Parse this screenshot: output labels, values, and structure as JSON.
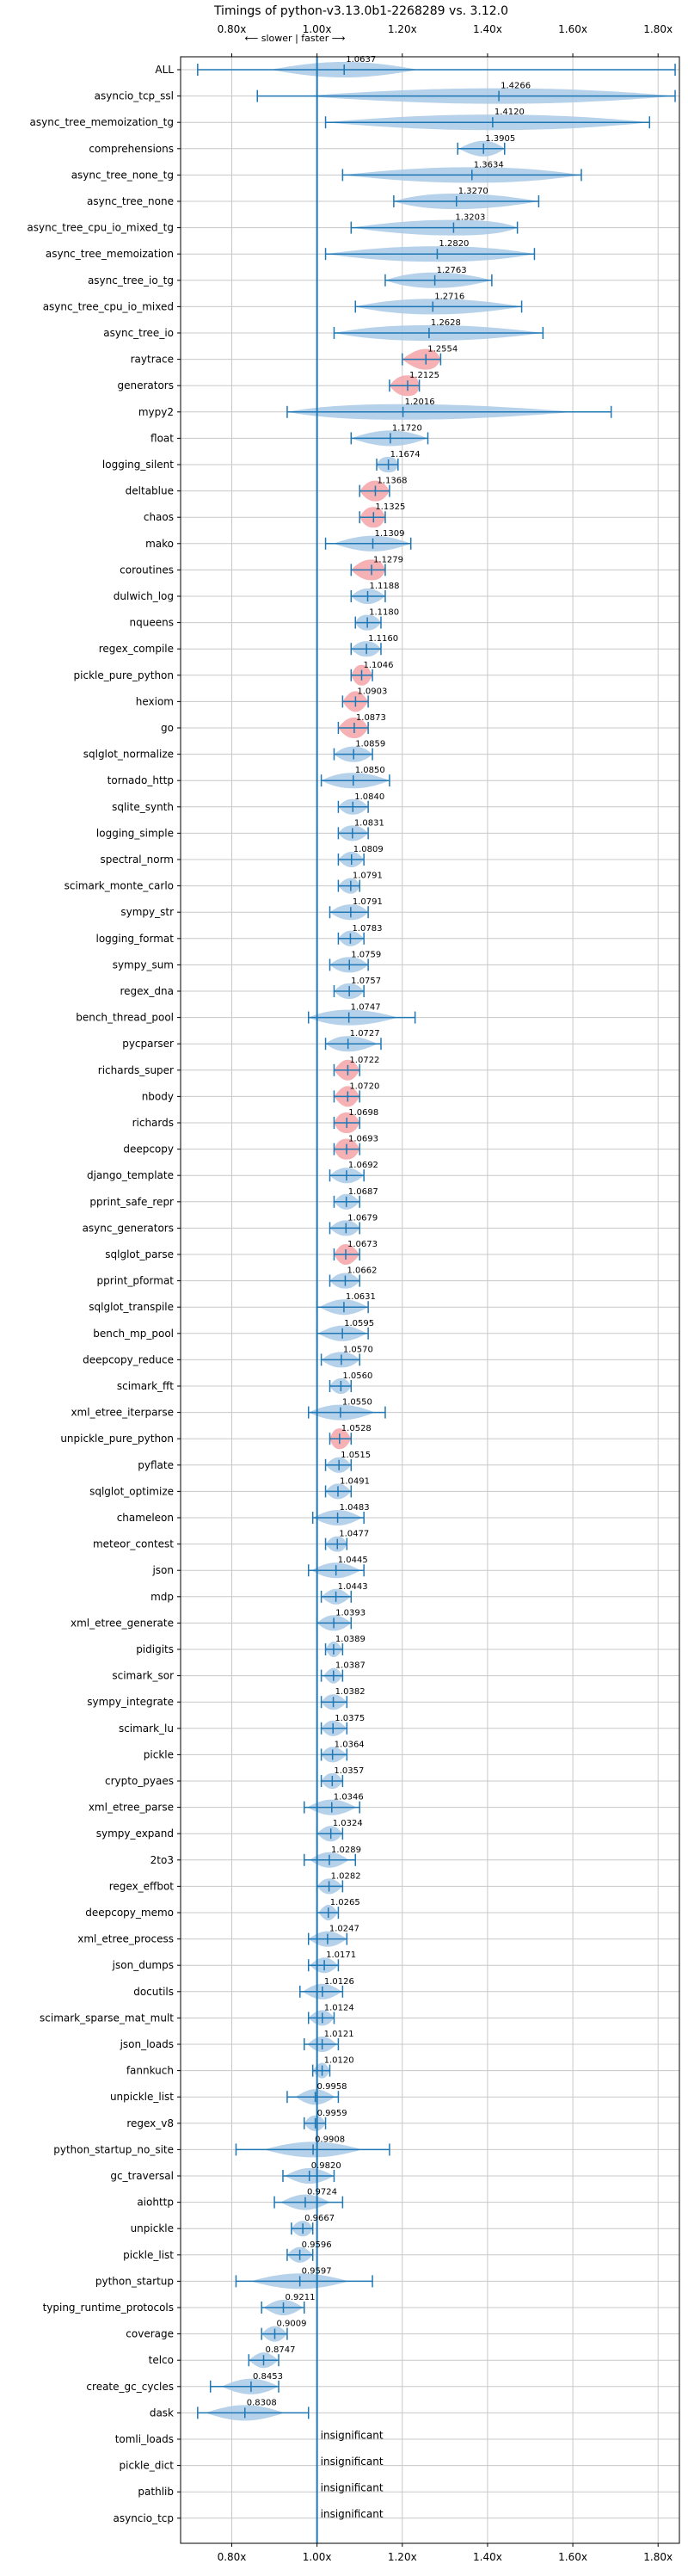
{
  "chart_data": {
    "type": "violin",
    "title": "Timings of python-v3.13.0b1-2268289 vs. 3.12.0",
    "direction_note": "⟵ slower | faster ⟶",
    "xlim": [
      0.68,
      1.85
    ],
    "x_ticks": [
      0.8,
      1.0,
      1.2,
      1.4,
      1.6,
      1.8
    ],
    "x_tick_labels": [
      "0.80x",
      "1.00x",
      "1.20x",
      "1.40x",
      "1.60x",
      "1.80x"
    ],
    "reference_line": 1.0,
    "grid": true,
    "colors": {
      "violin": "#a9c9e6",
      "bar": "#1f77b4",
      "highlight": "#f4a3a8",
      "line": "#1f77b4"
    },
    "significant": [
      {
        "name": "ALL",
        "mean": 1.0637,
        "min": 0.72,
        "max": 1.84,
        "spread": 0.15
      },
      {
        "name": "asyncio_tcp_ssl",
        "mean": 1.4266,
        "min": 0.86,
        "max": 1.84,
        "spread": 0.4
      },
      {
        "name": "async_tree_memoization_tg",
        "mean": 1.412,
        "min": 1.02,
        "max": 1.78,
        "spread": 0.38
      },
      {
        "name": "comprehensions",
        "mean": 1.3905,
        "min": 1.33,
        "max": 1.44,
        "spread": 0.05
      },
      {
        "name": "async_tree_none_tg",
        "mean": 1.3634,
        "min": 1.06,
        "max": 1.62,
        "spread": 0.28
      },
      {
        "name": "async_tree_none",
        "mean": 1.327,
        "min": 1.18,
        "max": 1.52,
        "spread": 0.18
      },
      {
        "name": "async_tree_cpu_io_mixed_tg",
        "mean": 1.3203,
        "min": 1.08,
        "max": 1.47,
        "spread": 0.22
      },
      {
        "name": "async_tree_memoization",
        "mean": 1.282,
        "min": 1.02,
        "max": 1.51,
        "spread": 0.26
      },
      {
        "name": "async_tree_io_tg",
        "mean": 1.2763,
        "min": 1.16,
        "max": 1.41,
        "spread": 0.13
      },
      {
        "name": "async_tree_cpu_io_mixed",
        "mean": 1.2716,
        "min": 1.09,
        "max": 1.48,
        "spread": 0.2
      },
      {
        "name": "async_tree_io",
        "mean": 1.2628,
        "min": 1.04,
        "max": 1.53,
        "spread": 0.26
      },
      {
        "name": "raytrace",
        "mean": 1.2554,
        "min": 1.2,
        "max": 1.29,
        "spread": 0.05,
        "highlight": true
      },
      {
        "name": "generators",
        "mean": 1.2125,
        "min": 1.17,
        "max": 1.24,
        "spread": 0.05,
        "highlight": true
      },
      {
        "name": "mypy2",
        "mean": 1.2016,
        "min": 0.93,
        "max": 1.69,
        "spread": 0.35
      },
      {
        "name": "float",
        "mean": 1.172,
        "min": 1.08,
        "max": 1.26,
        "spread": 0.08
      },
      {
        "name": "logging_silent",
        "mean": 1.1674,
        "min": 1.14,
        "max": 1.19,
        "spread": 0.04
      },
      {
        "name": "deltablue",
        "mean": 1.1368,
        "min": 1.1,
        "max": 1.17,
        "spread": 0.04,
        "highlight": true
      },
      {
        "name": "chaos",
        "mean": 1.1325,
        "min": 1.1,
        "max": 1.16,
        "spread": 0.04,
        "highlight": true
      },
      {
        "name": "mako",
        "mean": 1.1309,
        "min": 1.02,
        "max": 1.22,
        "spread": 0.08
      },
      {
        "name": "coroutines",
        "mean": 1.1279,
        "min": 1.08,
        "max": 1.16,
        "spread": 0.05,
        "highlight": true
      },
      {
        "name": "dulwich_log",
        "mean": 1.1188,
        "min": 1.08,
        "max": 1.16,
        "spread": 0.04
      },
      {
        "name": "nqueens",
        "mean": 1.118,
        "min": 1.09,
        "max": 1.15,
        "spread": 0.04
      },
      {
        "name": "regex_compile",
        "mean": 1.116,
        "min": 1.08,
        "max": 1.15,
        "spread": 0.04
      },
      {
        "name": "pickle_pure_python",
        "mean": 1.1046,
        "min": 1.08,
        "max": 1.13,
        "spread": 0.03,
        "highlight": true
      },
      {
        "name": "hexiom",
        "mean": 1.0903,
        "min": 1.06,
        "max": 1.12,
        "spread": 0.03,
        "highlight": true
      },
      {
        "name": "go",
        "mean": 1.0873,
        "min": 1.05,
        "max": 1.12,
        "spread": 0.04,
        "highlight": true
      },
      {
        "name": "sqlglot_normalize",
        "mean": 1.0859,
        "min": 1.04,
        "max": 1.13,
        "spread": 0.05
      },
      {
        "name": "tornado_http",
        "mean": 1.085,
        "min": 1.01,
        "max": 1.17,
        "spread": 0.08
      },
      {
        "name": "sqlite_synth",
        "mean": 1.084,
        "min": 1.05,
        "max": 1.12,
        "spread": 0.04
      },
      {
        "name": "logging_simple",
        "mean": 1.0831,
        "min": 1.05,
        "max": 1.12,
        "spread": 0.04
      },
      {
        "name": "spectral_norm",
        "mean": 1.0809,
        "min": 1.05,
        "max": 1.11,
        "spread": 0.03
      },
      {
        "name": "scimark_monte_carlo",
        "mean": 1.0791,
        "min": 1.05,
        "max": 1.1,
        "spread": 0.03
      },
      {
        "name": "sympy_str",
        "mean": 1.0791,
        "min": 1.03,
        "max": 1.12,
        "spread": 0.05
      },
      {
        "name": "logging_format",
        "mean": 1.0783,
        "min": 1.05,
        "max": 1.11,
        "spread": 0.03
      },
      {
        "name": "sympy_sum",
        "mean": 1.0759,
        "min": 1.03,
        "max": 1.12,
        "spread": 0.05
      },
      {
        "name": "regex_dna",
        "mean": 1.0757,
        "min": 1.04,
        "max": 1.11,
        "spread": 0.04
      },
      {
        "name": "bench_thread_pool",
        "mean": 1.0747,
        "min": 0.98,
        "max": 1.23,
        "spread": 0.1
      },
      {
        "name": "pycparser",
        "mean": 1.0727,
        "min": 1.02,
        "max": 1.15,
        "spread": 0.06
      },
      {
        "name": "richards_super",
        "mean": 1.0722,
        "min": 1.04,
        "max": 1.1,
        "spread": 0.03,
        "highlight": true
      },
      {
        "name": "nbody",
        "mean": 1.072,
        "min": 1.04,
        "max": 1.1,
        "spread": 0.03,
        "highlight": true
      },
      {
        "name": "richards",
        "mean": 1.0698,
        "min": 1.04,
        "max": 1.1,
        "spread": 0.04,
        "highlight": true
      },
      {
        "name": "deepcopy",
        "mean": 1.0693,
        "min": 1.04,
        "max": 1.1,
        "spread": 0.04,
        "highlight": true
      },
      {
        "name": "django_template",
        "mean": 1.0692,
        "min": 1.03,
        "max": 1.11,
        "spread": 0.04
      },
      {
        "name": "pprint_safe_repr",
        "mean": 1.0687,
        "min": 1.04,
        "max": 1.1,
        "spread": 0.03
      },
      {
        "name": "async_generators",
        "mean": 1.0679,
        "min": 1.03,
        "max": 1.1,
        "spread": 0.04
      },
      {
        "name": "sqlglot_parse",
        "mean": 1.0673,
        "min": 1.04,
        "max": 1.1,
        "spread": 0.03,
        "highlight": true
      },
      {
        "name": "pprint_pformat",
        "mean": 1.0662,
        "min": 1.03,
        "max": 1.1,
        "spread": 0.04
      },
      {
        "name": "sqlglot_transpile",
        "mean": 1.0631,
        "min": 1.0,
        "max": 1.12,
        "spread": 0.05
      },
      {
        "name": "bench_mp_pool",
        "mean": 1.0595,
        "min": 1.0,
        "max": 1.12,
        "spread": 0.05
      },
      {
        "name": "deepcopy_reduce",
        "mean": 1.057,
        "min": 1.01,
        "max": 1.1,
        "spread": 0.05
      },
      {
        "name": "scimark_fft",
        "mean": 1.056,
        "min": 1.03,
        "max": 1.08,
        "spread": 0.03
      },
      {
        "name": "xml_etree_iterparse",
        "mean": 1.055,
        "min": 0.98,
        "max": 1.16,
        "spread": 0.07
      },
      {
        "name": "unpickle_pure_python",
        "mean": 1.0528,
        "min": 1.03,
        "max": 1.08,
        "spread": 0.03,
        "highlight": true
      },
      {
        "name": "pyflate",
        "mean": 1.0515,
        "min": 1.02,
        "max": 1.08,
        "spread": 0.03
      },
      {
        "name": "sqlglot_optimize",
        "mean": 1.0491,
        "min": 1.02,
        "max": 1.08,
        "spread": 0.03
      },
      {
        "name": "chameleon",
        "mean": 1.0483,
        "min": 0.99,
        "max": 1.11,
        "spread": 0.05
      },
      {
        "name": "meteor_contest",
        "mean": 1.0477,
        "min": 1.02,
        "max": 1.07,
        "spread": 0.03
      },
      {
        "name": "json",
        "mean": 1.0445,
        "min": 0.98,
        "max": 1.11,
        "spread": 0.05
      },
      {
        "name": "mdp",
        "mean": 1.0443,
        "min": 1.01,
        "max": 1.08,
        "spread": 0.03
      },
      {
        "name": "xml_etree_generate",
        "mean": 1.0393,
        "min": 1.0,
        "max": 1.08,
        "spread": 0.04
      },
      {
        "name": "pidigits",
        "mean": 1.0389,
        "min": 1.02,
        "max": 1.06,
        "spread": 0.02
      },
      {
        "name": "scimark_sor",
        "mean": 1.0387,
        "min": 1.01,
        "max": 1.06,
        "spread": 0.02
      },
      {
        "name": "sympy_integrate",
        "mean": 1.0382,
        "min": 1.01,
        "max": 1.07,
        "spread": 0.03
      },
      {
        "name": "scimark_lu",
        "mean": 1.0375,
        "min": 1.01,
        "max": 1.07,
        "spread": 0.03
      },
      {
        "name": "pickle",
        "mean": 1.0364,
        "min": 1.01,
        "max": 1.07,
        "spread": 0.03
      },
      {
        "name": "crypto_pyaes",
        "mean": 1.0357,
        "min": 1.01,
        "max": 1.06,
        "spread": 0.03
      },
      {
        "name": "xml_etree_parse",
        "mean": 1.0346,
        "min": 0.97,
        "max": 1.1,
        "spread": 0.05
      },
      {
        "name": "sympy_expand",
        "mean": 1.0324,
        "min": 1.0,
        "max": 1.06,
        "spread": 0.03
      },
      {
        "name": "2to3",
        "mean": 1.0289,
        "min": 0.97,
        "max": 1.09,
        "spread": 0.04
      },
      {
        "name": "regex_effbot",
        "mean": 1.0282,
        "min": 1.0,
        "max": 1.06,
        "spread": 0.03
      },
      {
        "name": "deepcopy_memo",
        "mean": 1.0265,
        "min": 1.0,
        "max": 1.05,
        "spread": 0.02
      },
      {
        "name": "xml_etree_process",
        "mean": 1.0247,
        "min": 0.98,
        "max": 1.07,
        "spread": 0.04
      },
      {
        "name": "json_dumps",
        "mean": 1.0171,
        "min": 0.98,
        "max": 1.05,
        "spread": 0.03
      },
      {
        "name": "docutils",
        "mean": 1.0126,
        "min": 0.96,
        "max": 1.06,
        "spread": 0.04
      },
      {
        "name": "scimark_sparse_mat_mult",
        "mean": 1.0124,
        "min": 0.98,
        "max": 1.04,
        "spread": 0.03
      },
      {
        "name": "json_loads",
        "mean": 1.0121,
        "min": 0.97,
        "max": 1.05,
        "spread": 0.03
      },
      {
        "name": "fannkuch",
        "mean": 1.012,
        "min": 0.99,
        "max": 1.03,
        "spread": 0.02
      },
      {
        "name": "unpickle_list",
        "mean": 0.9958,
        "min": 0.93,
        "max": 1.05,
        "spread": 0.04
      },
      {
        "name": "regex_v8",
        "mean": 0.9959,
        "min": 0.97,
        "max": 1.02,
        "spread": 0.03
      },
      {
        "name": "python_startup_no_site",
        "mean": 0.9908,
        "min": 0.81,
        "max": 1.17,
        "spread": 0.1
      },
      {
        "name": "gc_traversal",
        "mean": 0.982,
        "min": 0.92,
        "max": 1.04,
        "spread": 0.05
      },
      {
        "name": "aiohttp",
        "mean": 0.9724,
        "min": 0.9,
        "max": 1.06,
        "spread": 0.05
      },
      {
        "name": "unpickle",
        "mean": 0.9667,
        "min": 0.94,
        "max": 0.99,
        "spread": 0.03
      },
      {
        "name": "pickle_list",
        "mean": 0.9596,
        "min": 0.93,
        "max": 0.99,
        "spread": 0.03
      },
      {
        "name": "python_startup",
        "mean": 0.9597,
        "min": 0.81,
        "max": 1.13,
        "spread": 0.1
      },
      {
        "name": "typing_runtime_protocols",
        "mean": 0.9211,
        "min": 0.87,
        "max": 0.97,
        "spread": 0.04
      },
      {
        "name": "coverage",
        "mean": 0.9009,
        "min": 0.87,
        "max": 0.93,
        "spread": 0.03
      },
      {
        "name": "telco",
        "mean": 0.8747,
        "min": 0.84,
        "max": 0.91,
        "spread": 0.03
      },
      {
        "name": "create_gc_cycles",
        "mean": 0.8453,
        "min": 0.75,
        "max": 0.91,
        "spread": 0.06
      },
      {
        "name": "dask",
        "mean": 0.8308,
        "min": 0.72,
        "max": 0.98,
        "spread": 0.08
      }
    ],
    "insignificant": [
      "tomli_loads",
      "pickle_dict",
      "pathlib",
      "asyncio_tcp"
    ],
    "insignificant_label": "insignificant"
  }
}
